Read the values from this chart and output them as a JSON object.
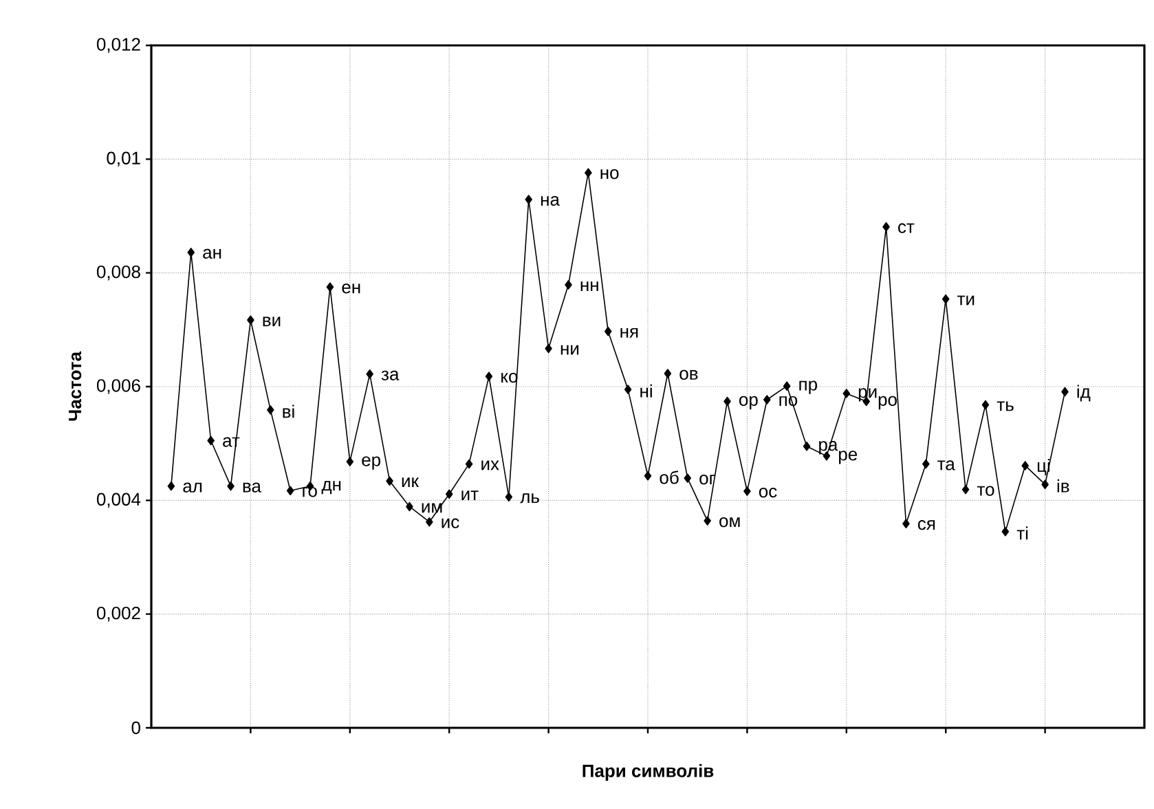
{
  "chart_data": {
    "type": "line",
    "xlabel": "Пари символів",
    "ylabel": "Частота",
    "categories": [
      null,
      null,
      null,
      null,
      null,
      null,
      null,
      null,
      null,
      null,
      null,
      null,
      null,
      null,
      null,
      null,
      null,
      null,
      null,
      null,
      null,
      null,
      null,
      null,
      null,
      null,
      null,
      null,
      null,
      null,
      null,
      null,
      null,
      null,
      null,
      null,
      null,
      null,
      null,
      null,
      null,
      null,
      null,
      null,
      null,
      null
    ],
    "series": [
      {
        "color": "#000000",
        "values": [
          0.00425,
          0.00836,
          0.00505,
          0.00425,
          0.00717,
          0.00559,
          0.00417,
          0.00425,
          0.00775,
          0.00468,
          0.00622,
          0.00434,
          0.00389,
          0.00362,
          0.00411,
          0.00464,
          0.00618,
          0.00406,
          0.00929,
          0.00667,
          0.00779,
          0.00976,
          0.00697,
          0.00595,
          0.00443,
          0.00623,
          0.00439,
          0.00364,
          0.00574,
          0.00416,
          0.00577,
          0.00601,
          0.00495,
          0.00478,
          0.00588,
          0.00574,
          0.00881,
          0.00359,
          0.00464,
          0.00754,
          0.00419,
          0.00568,
          0.00345,
          0.00461,
          0.00428,
          0.00591
        ],
        "value_labels": [
          "ал",
          "ан",
          "ат",
          "ва",
          "ви",
          "ві",
          "го",
          "дн",
          "ен",
          "ер",
          "за",
          "ик",
          "им",
          "ис",
          "ит",
          "их",
          "ко",
          "ль",
          "на",
          "ни",
          "нн",
          "но",
          "ня",
          "ні",
          "об",
          "ов",
          "ог",
          "ом",
          "ор",
          "ос",
          "по",
          "пр",
          "ра",
          "ре",
          "ри",
          "ро",
          "ст",
          "ся",
          "та",
          "ти",
          "то",
          "ть",
          "ті",
          "ці",
          "ів",
          "ід"
        ]
      }
    ],
    "ylim": [
      0,
      0.012
    ],
    "yticks": [
      {
        "value": 0,
        "label": "0"
      },
      {
        "value": 0.002,
        "label": "0,002"
      },
      {
        "value": 0.004,
        "label": "0,004"
      },
      {
        "value": 0.006,
        "label": "0,006"
      },
      {
        "value": 0.008,
        "label": "0,008"
      },
      {
        "value": 0.01,
        "label": "0,01"
      },
      {
        "value": 0.012,
        "label": "0,012"
      }
    ],
    "grid": true,
    "marker": "diamond",
    "line_style": "solid",
    "tick_labels": "y"
  }
}
